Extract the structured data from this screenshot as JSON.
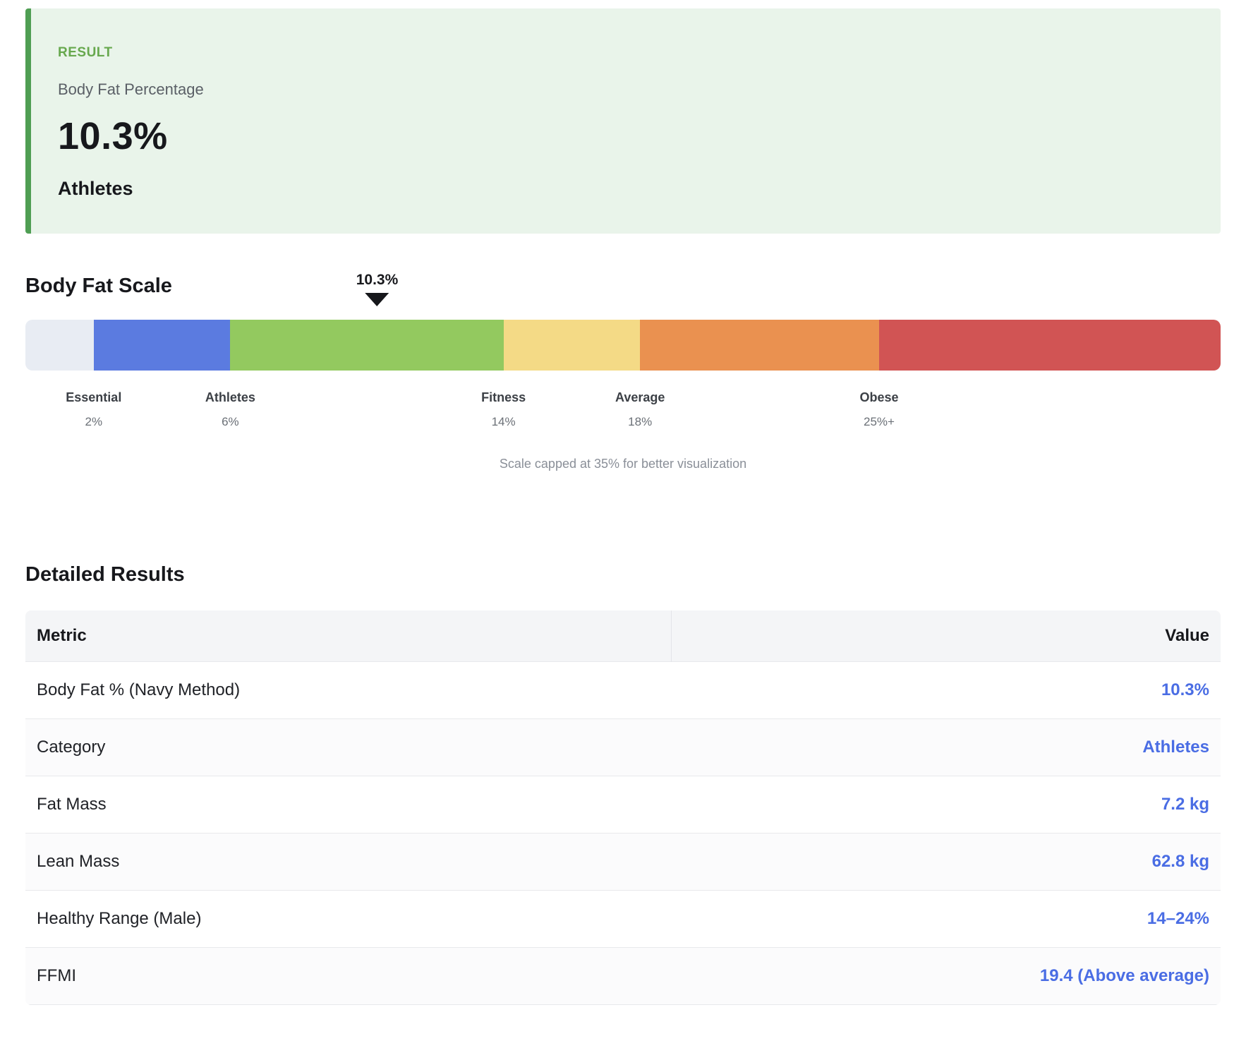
{
  "result_card": {
    "label": "RESULT",
    "subtitle": "Body Fat Percentage",
    "value": "10.3%",
    "category": "Athletes",
    "accent_color": "#4f9e53",
    "background_color": "#e9f4ea"
  },
  "scale": {
    "title": "Body Fat Scale",
    "marker_label": "10.3%",
    "marker_value": 10.3,
    "max": 35,
    "caption": "Scale capped at 35% for better visualization",
    "segments": [
      {
        "name": "below-essential",
        "from": 0,
        "to": 2,
        "color": "#e8ecf3"
      },
      {
        "name": "essential",
        "from": 2,
        "to": 6,
        "color": "#5b7be0"
      },
      {
        "name": "athletes",
        "from": 6,
        "to": 14,
        "color": "#93c95f"
      },
      {
        "name": "fitness",
        "from": 14,
        "to": 18,
        "color": "#f4da86"
      },
      {
        "name": "average",
        "from": 18,
        "to": 25,
        "color": "#ea9150"
      },
      {
        "name": "obese",
        "from": 25,
        "to": 35,
        "color": "#d15454"
      }
    ],
    "ticks": [
      {
        "label": "Essential",
        "value": "2%",
        "at": 2
      },
      {
        "label": "Athletes",
        "value": "6%",
        "at": 6
      },
      {
        "label": "Fitness",
        "value": "14%",
        "at": 14
      },
      {
        "label": "Average",
        "value": "18%",
        "at": 18
      },
      {
        "label": "Obese",
        "value": "25%+",
        "at": 25
      }
    ]
  },
  "details": {
    "title": "Detailed Results",
    "columns": [
      "Metric",
      "Value"
    ],
    "value_color": "#4a6de4",
    "rows": [
      {
        "metric": "Body Fat % (Navy Method)",
        "value": "10.3%"
      },
      {
        "metric": "Category",
        "value": "Athletes"
      },
      {
        "metric": "Fat Mass",
        "value": "7.2 kg"
      },
      {
        "metric": "Lean Mass",
        "value": "62.8 kg"
      },
      {
        "metric": "Healthy Range (Male)",
        "value": "14–24%"
      },
      {
        "metric": "FFMI",
        "value": "19.4 (Above average)"
      }
    ]
  }
}
